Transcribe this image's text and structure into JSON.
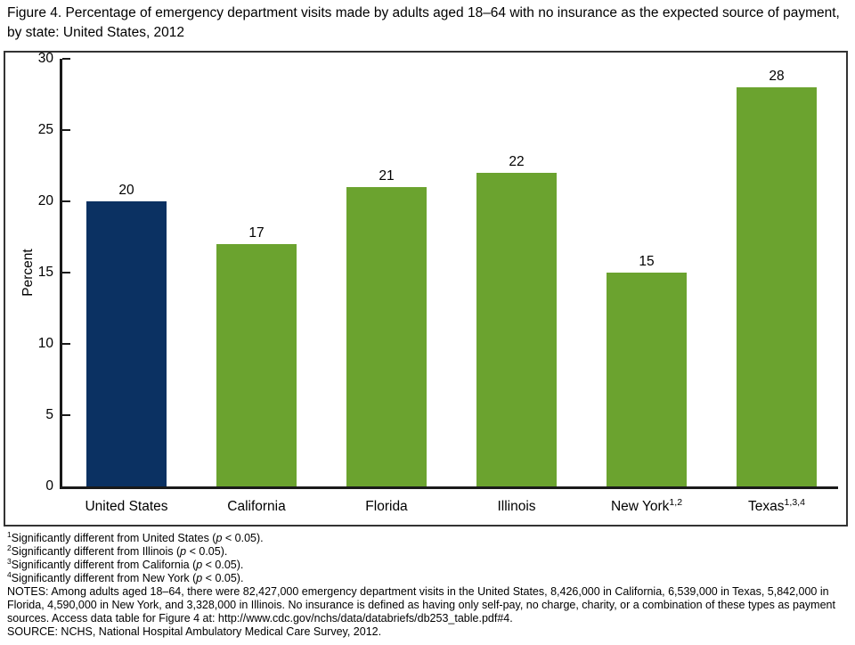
{
  "figure": {
    "title": "Figure 4. Percentage of emergency department visits made by adults aged 18–64 with no insurance as the expected source of payment, by state: United States, 2012"
  },
  "chart_data": {
    "type": "bar",
    "title": "Percentage of emergency department visits made by adults aged 18–64 with no insurance as the expected source of payment, by state: United States, 2012",
    "categories": [
      "United States",
      "California",
      "Florida",
      "Illinois",
      "New York",
      "Texas"
    ],
    "category_superscripts": [
      "",
      "",
      "",
      "",
      "1,2",
      "1,3,4"
    ],
    "values": [
      20,
      17,
      21,
      22,
      15,
      28
    ],
    "bar_colors": [
      "#0b3162",
      "#6ba32f",
      "#6ba32f",
      "#6ba32f",
      "#6ba32f",
      "#6ba32f"
    ],
    "highlight_color": "#0b3162",
    "default_color": "#6ba32f",
    "xlabel": "",
    "ylabel": "Percent",
    "ylim": [
      0,
      30
    ],
    "yticks": [
      0,
      5,
      10,
      15,
      20,
      25,
      30
    ],
    "grid": false,
    "legend": "none",
    "value_labels_shown": true
  },
  "footnotes": [
    {
      "sup": "1",
      "text": "Significantly different from United States (p < 0.05)."
    },
    {
      "sup": "2",
      "text": "Significantly different from Illinois (p < 0.05)."
    },
    {
      "sup": "3",
      "text": "Significantly different from California (p < 0.05)."
    },
    {
      "sup": "4",
      "text": "Significantly different from New York (p < 0.05)."
    }
  ],
  "notes": "NOTES: Among adults aged 18–64, there were 82,427,000 emergency department visits in the United States, 8,426,000 in California, 6,539,000 in Texas, 5,842,000 in Florida, 4,590,000 in New York, and 3,328,000 in Illinois. No insurance is defined as having only self-pay, no charge, charity, or a combination of these types as payment sources. Access data table for Figure 4 at: http://www.cdc.gov/nchs/data/databriefs/db253_table.pdf#4.",
  "source": "SOURCE: NCHS, National Hospital Ambulatory Medical Care Survey, 2012."
}
